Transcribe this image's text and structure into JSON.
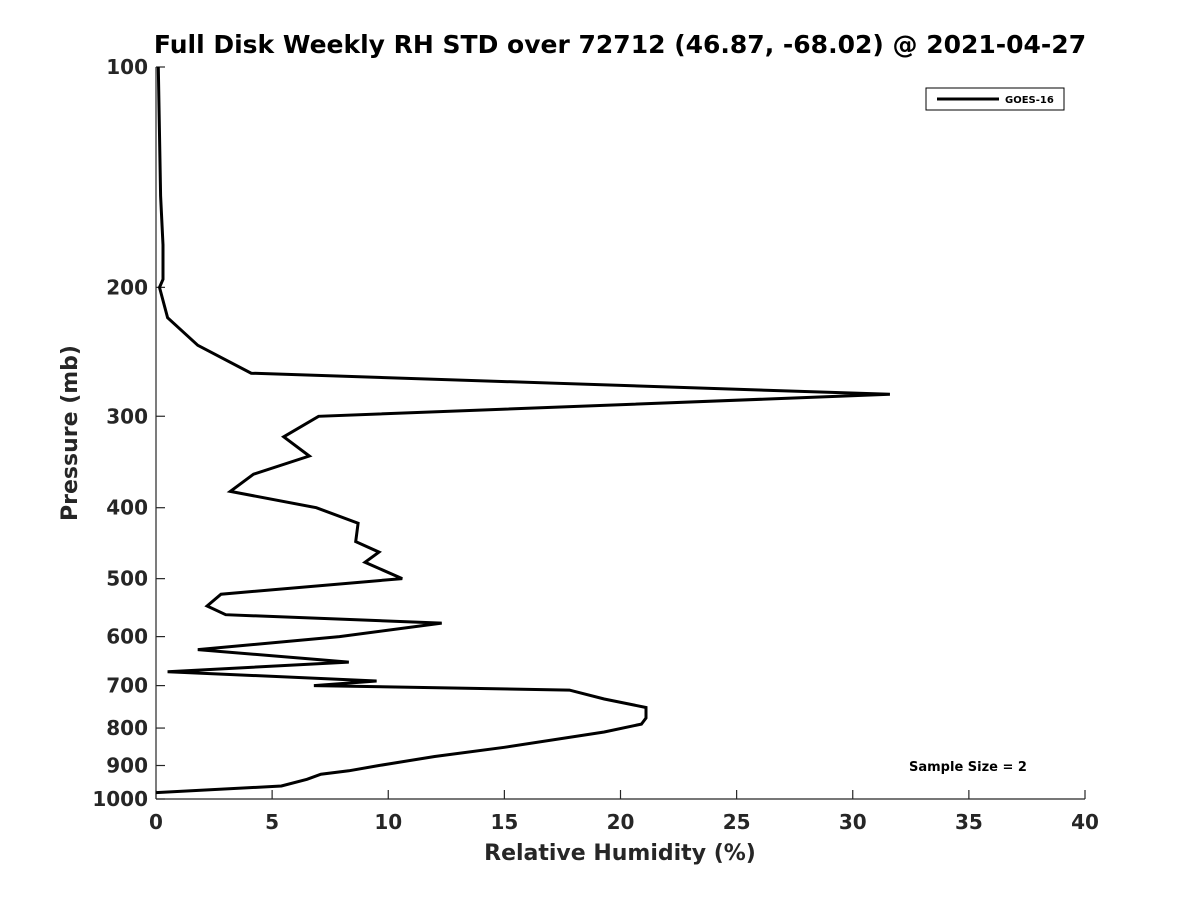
{
  "chart_data": {
    "type": "line",
    "title": "Full Disk Weekly RH STD over 72712 (46.87, -68.02) @ 2021-04-27",
    "xlabel": "Relative Humidity (%)",
    "ylabel": "Pressure (mb)",
    "xlim": [
      0,
      40
    ],
    "ylim": [
      100,
      1000
    ],
    "y_scale": "log",
    "y_reversed": true,
    "x_ticks": [
      0,
      5,
      10,
      15,
      20,
      25,
      30,
      35,
      40
    ],
    "y_ticks": [
      100,
      200,
      300,
      400,
      500,
      600,
      700,
      800,
      900,
      1000
    ],
    "grid": false,
    "legend_position": "top-right",
    "series": [
      {
        "name": "GOES-16",
        "color": "#000000",
        "points": [
          [
            0.1,
            100
          ],
          [
            0.2,
            150
          ],
          [
            0.3,
            175
          ],
          [
            0.3,
            195
          ],
          [
            0.15,
            200
          ],
          [
            0.5,
            220
          ],
          [
            1.8,
            240
          ],
          [
            4.1,
            262
          ],
          [
            31.6,
            280
          ],
          [
            7.0,
            300
          ],
          [
            5.5,
            320
          ],
          [
            6.6,
            340
          ],
          [
            4.2,
            360
          ],
          [
            3.2,
            380
          ],
          [
            6.9,
            400
          ],
          [
            8.7,
            420
          ],
          [
            8.6,
            445
          ],
          [
            9.6,
            460
          ],
          [
            9.0,
            475
          ],
          [
            10.6,
            500
          ],
          [
            2.8,
            525
          ],
          [
            2.2,
            545
          ],
          [
            3.0,
            560
          ],
          [
            12.3,
            575
          ],
          [
            7.9,
            600
          ],
          [
            1.8,
            625
          ],
          [
            8.3,
            650
          ],
          [
            0.5,
            670
          ],
          [
            9.5,
            690
          ],
          [
            6.8,
            700
          ],
          [
            17.8,
            710
          ],
          [
            19.3,
            730
          ],
          [
            21.1,
            750
          ],
          [
            21.1,
            775
          ],
          [
            20.9,
            790
          ],
          [
            19.3,
            810
          ],
          [
            15.0,
            850
          ],
          [
            12.0,
            875
          ],
          [
            9.6,
            900
          ],
          [
            8.3,
            915
          ],
          [
            7.1,
            925
          ],
          [
            6.5,
            940
          ],
          [
            5.4,
            960
          ],
          [
            0.0,
            980
          ]
        ]
      }
    ],
    "annotations": [
      {
        "text": "Sample Size = 2",
        "position": "bottom-right"
      }
    ]
  }
}
